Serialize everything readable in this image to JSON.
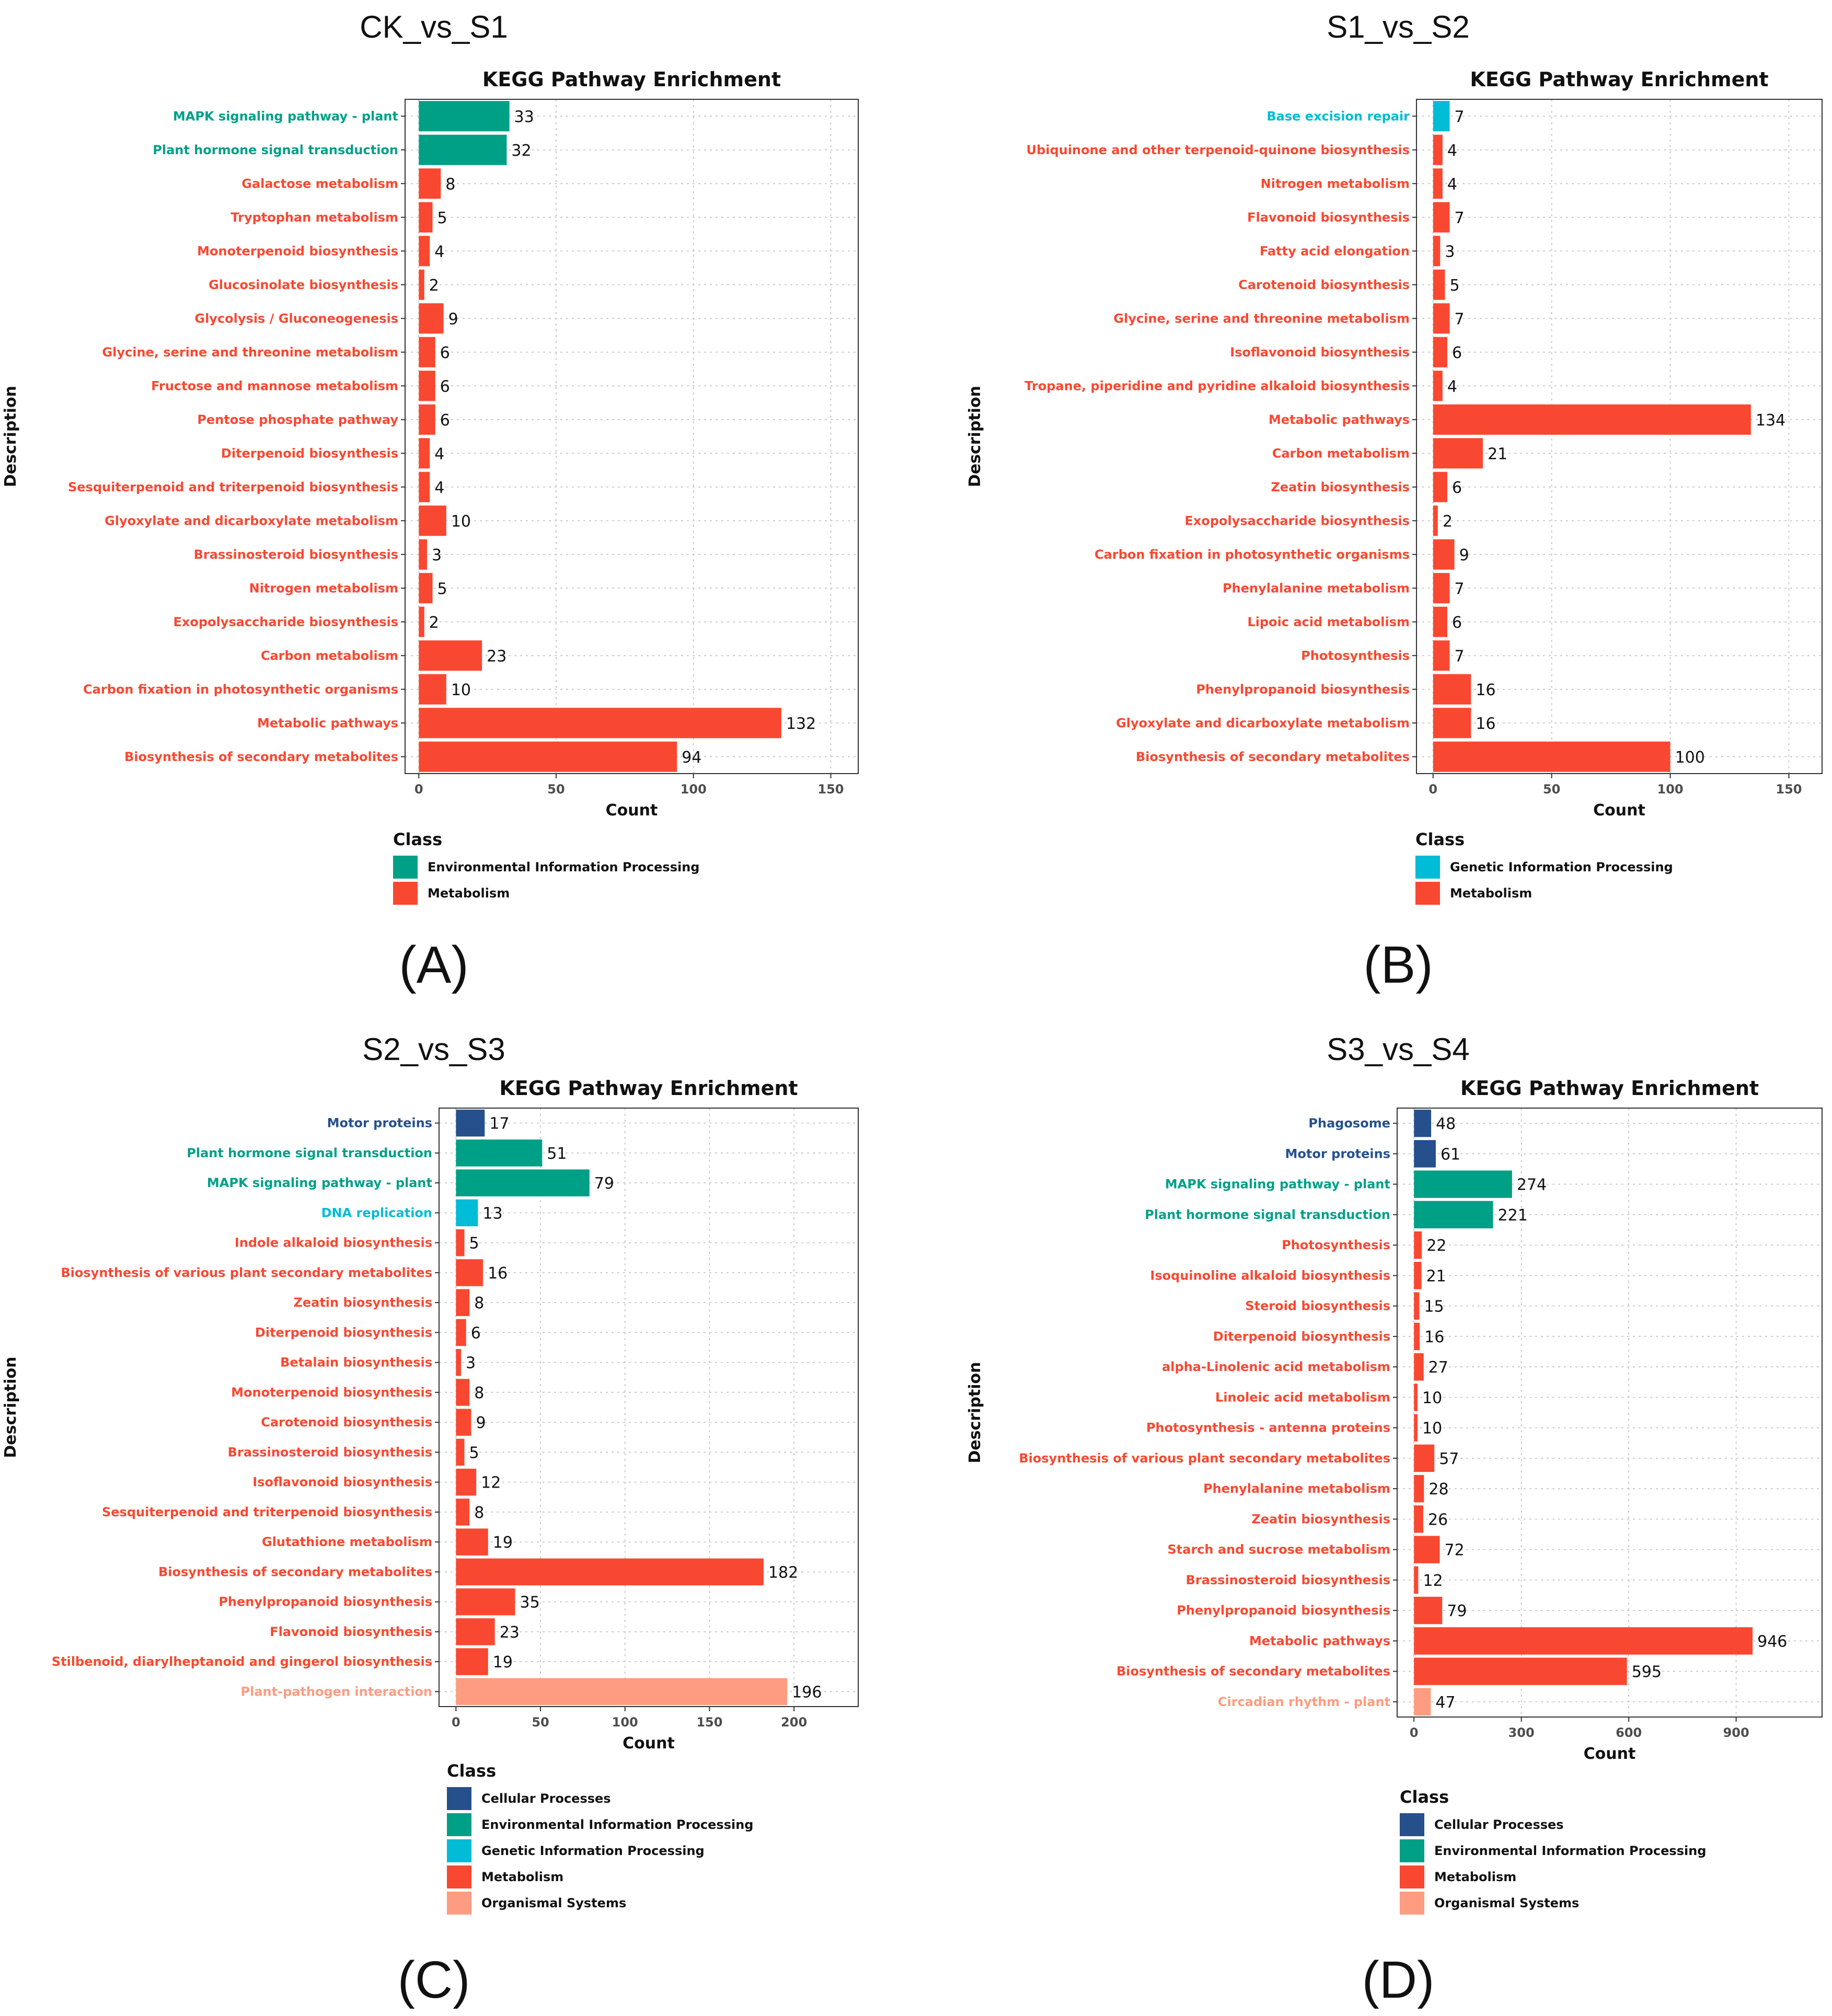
{
  "figure": {
    "class_colors": {
      "Cellular Processes": "#26508c",
      "Environmental Information Processing": "#00a087",
      "Genetic Information Processing": "#00bcd6",
      "Metabolism": "#f94831",
      "Organismal Systems": "#fd9c81"
    }
  },
  "chart_data": [
    {
      "type": "bar",
      "orientation": "horizontal",
      "panel_title": "CK_vs_S1",
      "panel_letter": "(A)",
      "title": "KEGG Pathway Enrichment",
      "xlabel": "Count",
      "ylabel": "Description",
      "xlim": [
        -5,
        160
      ],
      "xticks": [
        0,
        50,
        100,
        150
      ],
      "grid": true,
      "legend_title": "Class",
      "legend": [
        "Environmental Information Processing",
        "Metabolism"
      ],
      "categories": [
        "MAPK signaling pathway - plant",
        "Plant hormone signal transduction",
        "Galactose metabolism",
        "Tryptophan metabolism",
        "Monoterpenoid biosynthesis",
        "Glucosinolate biosynthesis",
        "Glycolysis / Gluconeogenesis",
        "Glycine, serine and threonine metabolism",
        "Fructose and mannose metabolism",
        "Pentose phosphate pathway",
        "Diterpenoid biosynthesis",
        "Sesquiterpenoid and triterpenoid biosynthesis",
        "Glyoxylate and dicarboxylate metabolism",
        "Brassinosteroid biosynthesis",
        "Nitrogen metabolism",
        "Exopolysaccharide biosynthesis",
        "Carbon metabolism",
        "Carbon fixation in photosynthetic organisms",
        "Metabolic pathways",
        "Biosynthesis of secondary metabolites"
      ],
      "values": [
        33,
        32,
        8,
        5,
        4,
        2,
        9,
        6,
        6,
        6,
        4,
        4,
        10,
        3,
        5,
        2,
        23,
        10,
        132,
        94
      ],
      "classes": [
        "Environmental Information Processing",
        "Environmental Information Processing",
        "Metabolism",
        "Metabolism",
        "Metabolism",
        "Metabolism",
        "Metabolism",
        "Metabolism",
        "Metabolism",
        "Metabolism",
        "Metabolism",
        "Metabolism",
        "Metabolism",
        "Metabolism",
        "Metabolism",
        "Metabolism",
        "Metabolism",
        "Metabolism",
        "Metabolism",
        "Metabolism"
      ]
    },
    {
      "type": "bar",
      "orientation": "horizontal",
      "panel_title": "S1_vs_S2",
      "panel_letter": "(B)",
      "title": "KEGG Pathway Enrichment",
      "xlabel": "Count",
      "ylabel": "Description",
      "xlim": [
        -7,
        164
      ],
      "xticks": [
        0,
        50,
        100,
        150
      ],
      "grid": true,
      "legend_title": "Class",
      "legend": [
        "Genetic Information Processing",
        "Metabolism"
      ],
      "categories": [
        "Base excision repair",
        "Ubiquinone and other terpenoid-quinone biosynthesis",
        "Nitrogen metabolism",
        "Flavonoid biosynthesis",
        "Fatty acid elongation",
        "Carotenoid biosynthesis",
        "Glycine, serine and threonine metabolism",
        "Isoflavonoid biosynthesis",
        "Tropane, piperidine and pyridine alkaloid biosynthesis",
        "Metabolic pathways",
        "Carbon metabolism",
        "Zeatin biosynthesis",
        "Exopolysaccharide biosynthesis",
        "Carbon fixation in photosynthetic organisms",
        "Phenylalanine metabolism",
        "Lipoic acid metabolism",
        "Photosynthesis",
        "Phenylpropanoid biosynthesis",
        "Glyoxylate and dicarboxylate metabolism",
        "Biosynthesis of secondary metabolites"
      ],
      "values": [
        7,
        4,
        4,
        7,
        3,
        5,
        7,
        6,
        4,
        134,
        21,
        6,
        2,
        9,
        7,
        6,
        7,
        16,
        16,
        100
      ],
      "classes": [
        "Genetic Information Processing",
        "Metabolism",
        "Metabolism",
        "Metabolism",
        "Metabolism",
        "Metabolism",
        "Metabolism",
        "Metabolism",
        "Metabolism",
        "Metabolism",
        "Metabolism",
        "Metabolism",
        "Metabolism",
        "Metabolism",
        "Metabolism",
        "Metabolism",
        "Metabolism",
        "Metabolism",
        "Metabolism",
        "Metabolism"
      ]
    },
    {
      "type": "bar",
      "orientation": "horizontal",
      "panel_title": "S2_vs_S3",
      "panel_letter": "(C)",
      "title": "KEGG Pathway Enrichment",
      "xlabel": "Count",
      "ylabel": "Description",
      "xlim": [
        -10,
        238
      ],
      "xticks": [
        0,
        50,
        100,
        150,
        200
      ],
      "grid": true,
      "legend_title": "Class",
      "legend": [
        "Cellular Processes",
        "Environmental Information Processing",
        "Genetic Information Processing",
        "Metabolism",
        "Organismal Systems"
      ],
      "categories": [
        "Motor proteins",
        "Plant hormone signal transduction",
        "MAPK signaling pathway - plant",
        "DNA replication",
        "Indole alkaloid biosynthesis",
        "Biosynthesis of various plant secondary metabolites",
        "Zeatin biosynthesis",
        "Diterpenoid biosynthesis",
        "Betalain biosynthesis",
        "Monoterpenoid biosynthesis",
        "Carotenoid biosynthesis",
        "Brassinosteroid biosynthesis",
        "Isoflavonoid biosynthesis",
        "Sesquiterpenoid and triterpenoid biosynthesis",
        "Glutathione metabolism",
        "Biosynthesis of secondary metabolites",
        "Phenylpropanoid biosynthesis",
        "Flavonoid biosynthesis",
        "Stilbenoid, diarylheptanoid and gingerol biosynthesis",
        "Plant-pathogen interaction"
      ],
      "values": [
        17,
        51,
        79,
        13,
        5,
        16,
        8,
        6,
        3,
        8,
        9,
        5,
        12,
        8,
        19,
        182,
        35,
        23,
        19,
        196
      ],
      "classes": [
        "Cellular Processes",
        "Environmental Information Processing",
        "Environmental Information Processing",
        "Genetic Information Processing",
        "Metabolism",
        "Metabolism",
        "Metabolism",
        "Metabolism",
        "Metabolism",
        "Metabolism",
        "Metabolism",
        "Metabolism",
        "Metabolism",
        "Metabolism",
        "Metabolism",
        "Metabolism",
        "Metabolism",
        "Metabolism",
        "Metabolism",
        "Organismal Systems"
      ]
    },
    {
      "type": "bar",
      "orientation": "horizontal",
      "panel_title": "S3_vs_S4",
      "panel_letter": "(D)",
      "title": "KEGG Pathway Enrichment",
      "xlabel": "Count",
      "ylabel": "Description",
      "xlim": [
        -47,
        1140
      ],
      "xticks": [
        0,
        300,
        600,
        900
      ],
      "grid": true,
      "legend_title": "Class",
      "legend": [
        "Cellular Processes",
        "Environmental Information Processing",
        "Metabolism",
        "Organismal Systems"
      ],
      "categories": [
        "Phagosome",
        "Motor proteins",
        "MAPK signaling pathway - plant",
        "Plant hormone signal transduction",
        "Photosynthesis",
        "Isoquinoline alkaloid biosynthesis",
        "Steroid biosynthesis",
        "Diterpenoid biosynthesis",
        "alpha-Linolenic acid metabolism",
        "Linoleic acid metabolism",
        "Photosynthesis - antenna proteins",
        "Biosynthesis of various plant secondary metabolites",
        "Phenylalanine metabolism",
        "Zeatin biosynthesis",
        "Starch and sucrose metabolism",
        "Brassinosteroid biosynthesis",
        "Phenylpropanoid biosynthesis",
        "Metabolic pathways",
        "Biosynthesis of secondary metabolites",
        "Circadian rhythm - plant"
      ],
      "values": [
        48,
        61,
        274,
        221,
        22,
        21,
        15,
        16,
        27,
        10,
        10,
        57,
        28,
        26,
        72,
        12,
        79,
        946,
        595,
        47
      ],
      "classes": [
        "Cellular Processes",
        "Cellular Processes",
        "Environmental Information Processing",
        "Environmental Information Processing",
        "Metabolism",
        "Metabolism",
        "Metabolism",
        "Metabolism",
        "Metabolism",
        "Metabolism",
        "Metabolism",
        "Metabolism",
        "Metabolism",
        "Metabolism",
        "Metabolism",
        "Metabolism",
        "Metabolism",
        "Metabolism",
        "Metabolism",
        "Organismal Systems"
      ]
    }
  ]
}
